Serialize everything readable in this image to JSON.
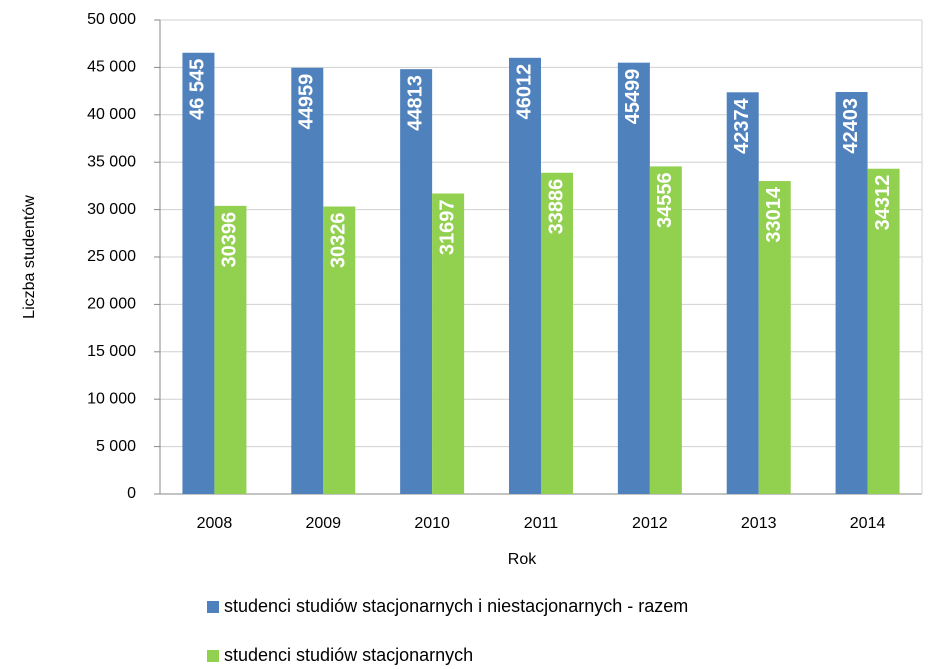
{
  "chart_data": {
    "type": "bar",
    "xlabel": "Rok",
    "ylabel": "Liczba studentów",
    "categories": [
      "2008",
      "2009",
      "2010",
      "2011",
      "2012",
      "2013",
      "2014"
    ],
    "series": [
      {
        "name": "studenci studiów stacjonarnych i niestacjonarnych - razem",
        "color": "#4f81bd",
        "values": [
          46545,
          44959,
          44813,
          46012,
          45499,
          42374,
          42403
        ],
        "value_labels": [
          "46 545",
          "44959",
          "44813",
          "46012",
          "45499",
          "42374",
          "42403"
        ]
      },
      {
        "name": "studenci studiów stacjonarnych",
        "color": "#92d050",
        "values": [
          30396,
          30326,
          31697,
          33886,
          34556,
          33014,
          34312
        ]
      }
    ],
    "ylim": [
      0,
      50000
    ],
    "yticks": [
      0,
      {
        "value": 5000,
        "label": "5 000"
      },
      {
        "value": 10000,
        "label": "10 000"
      },
      {
        "value": 15000,
        "label": "15 000"
      },
      {
        "value": 20000,
        "label": "20 000"
      },
      {
        "value": 25000,
        "label": "25 000"
      },
      {
        "value": 30000,
        "label": "30 000"
      },
      {
        "value": 35000,
        "label": "35 000"
      },
      {
        "value": 40000,
        "label": "40 000"
      },
      {
        "value": 45000,
        "label": "45 000"
      },
      {
        "value": 50000,
        "label": "50 000"
      }
    ],
    "grid": true,
    "legend": "bottom"
  }
}
